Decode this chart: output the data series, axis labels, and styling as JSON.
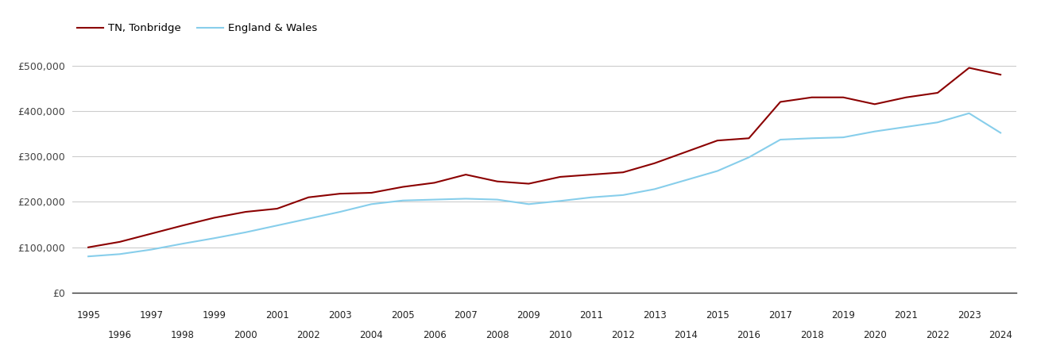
{
  "tonbridge": {
    "years": [
      1995,
      1996,
      1997,
      1998,
      1999,
      2000,
      2001,
      2002,
      2003,
      2004,
      2005,
      2006,
      2007,
      2008,
      2009,
      2010,
      2011,
      2012,
      2013,
      2014,
      2015,
      2016,
      2017,
      2018,
      2019,
      2020,
      2021,
      2022,
      2023,
      2024
    ],
    "values": [
      100000,
      112000,
      130000,
      148000,
      165000,
      178000,
      185000,
      210000,
      218000,
      220000,
      233000,
      242000,
      260000,
      245000,
      240000,
      255000,
      260000,
      265000,
      285000,
      310000,
      335000,
      340000,
      420000,
      430000,
      430000,
      415000,
      430000,
      440000,
      495000,
      480000
    ]
  },
  "england_wales": {
    "years": [
      1995,
      1996,
      1997,
      1998,
      1999,
      2000,
      2001,
      2002,
      2003,
      2004,
      2005,
      2006,
      2007,
      2008,
      2009,
      2010,
      2011,
      2012,
      2013,
      2014,
      2015,
      2016,
      2017,
      2018,
      2019,
      2020,
      2021,
      2022,
      2023,
      2024
    ],
    "values": [
      80000,
      85000,
      95000,
      108000,
      120000,
      133000,
      148000,
      163000,
      178000,
      195000,
      203000,
      205000,
      207000,
      205000,
      195000,
      202000,
      210000,
      215000,
      228000,
      248000,
      268000,
      298000,
      337000,
      340000,
      342000,
      355000,
      365000,
      375000,
      395000,
      352000
    ]
  },
  "line_color_tn": "#8B0000",
  "line_color_ew": "#87CEEB",
  "legend_label_tn": "TN, Tonbridge",
  "legend_label_ew": "England & Wales",
  "ylim": [
    0,
    550000
  ],
  "yticks": [
    0,
    100000,
    200000,
    300000,
    400000,
    500000
  ],
  "ytick_labels": [
    "£0",
    "£100,000",
    "£200,000",
    "£300,000",
    "£400,000",
    "£500,000"
  ],
  "xticks_top": [
    1995,
    1997,
    1999,
    2001,
    2003,
    2005,
    2007,
    2009,
    2011,
    2013,
    2015,
    2017,
    2019,
    2021,
    2023
  ],
  "xticks_bottom": [
    1996,
    1998,
    2000,
    2002,
    2004,
    2006,
    2008,
    2010,
    2012,
    2014,
    2016,
    2018,
    2020,
    2022,
    2024
  ],
  "background_color": "#ffffff",
  "grid_color": "#cccccc",
  "line_width": 1.5
}
